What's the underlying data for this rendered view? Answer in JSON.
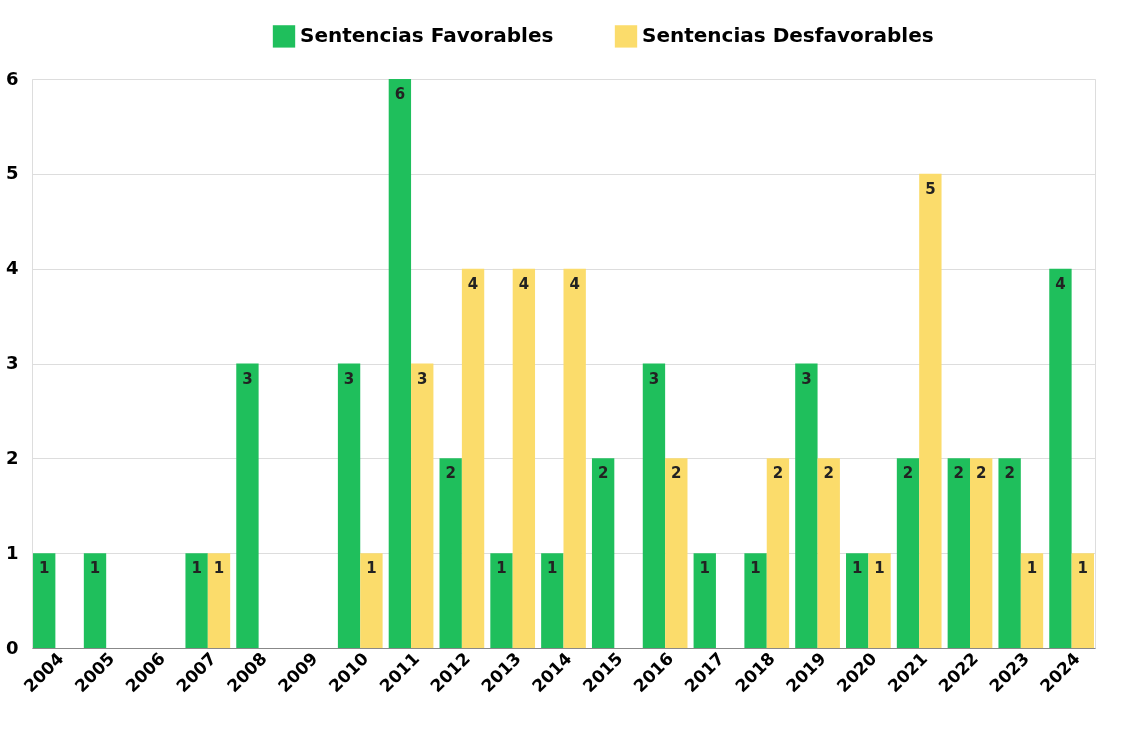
{
  "chart_data": {
    "type": "bar",
    "categories": [
      "2004",
      "2005",
      "2006",
      "2007",
      "2008",
      "2009",
      "2010",
      "2011",
      "2012",
      "2013",
      "2014",
      "2015",
      "2016",
      "2017",
      "2018",
      "2019",
      "2020",
      "2021",
      "2022",
      "2023",
      "2024"
    ],
    "series": [
      {
        "name": "Sentencias Favorables",
        "color": "#1fbf5c",
        "values": [
          1,
          1,
          null,
          1,
          3,
          null,
          3,
          6,
          2,
          1,
          1,
          2,
          3,
          1,
          1,
          3,
          1,
          2,
          2,
          2,
          4
        ]
      },
      {
        "name": "Sentencias Desfavorables",
        "color": "#fbdc6b",
        "values": [
          null,
          null,
          null,
          1,
          null,
          null,
          1,
          3,
          4,
          4,
          4,
          null,
          2,
          null,
          2,
          2,
          1,
          5,
          2,
          1,
          1
        ]
      }
    ],
    "ylim": [
      0,
      6
    ],
    "yticks": [
      0,
      1,
      2,
      3,
      4,
      5,
      6
    ],
    "grid": "y",
    "legend": "top",
    "data_labels": true
  }
}
